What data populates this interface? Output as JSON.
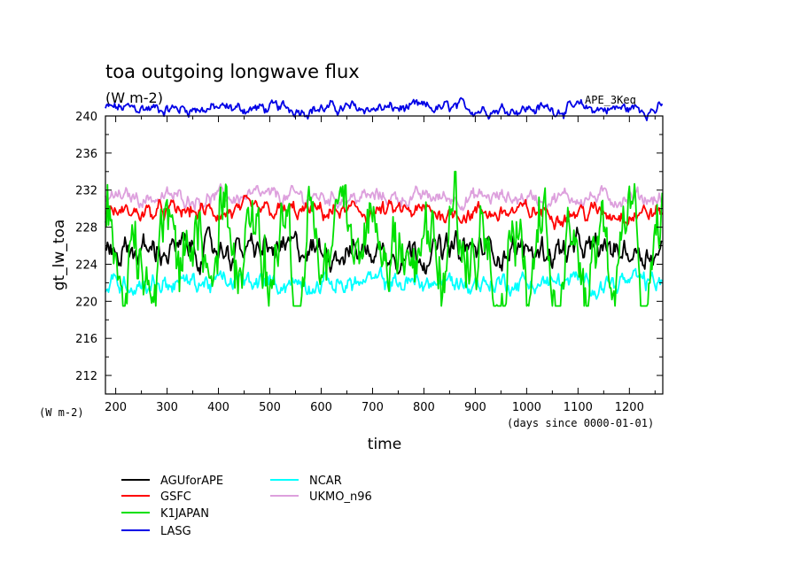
{
  "chart_data": {
    "type": "line",
    "title": "toa outgoing longwave flux",
    "subtitle": "(W m-2)",
    "tag": "APE_3Keq",
    "ylabel": "gt_lw_toa",
    "yunits": "(W m-2)",
    "xlabel": "time",
    "xunits": "(days since 0000-01-01)",
    "xlim": [
      180,
      1265
    ],
    "ylim": [
      210,
      240
    ],
    "xticks": [
      200,
      300,
      400,
      500,
      600,
      700,
      800,
      900,
      1000,
      1100,
      1200
    ],
    "yticks": [
      212,
      216,
      220,
      224,
      228,
      232,
      236,
      240
    ],
    "grid": false,
    "legend_position": "bottom-left",
    "series": [
      {
        "name": "AGUforAPE",
        "color": "#000000",
        "mean": 225.5,
        "amplitude": 1.4,
        "min": 222.0,
        "max": 228.0
      },
      {
        "name": "GSFC",
        "color": "#ff0000",
        "mean": 229.6,
        "amplitude": 0.9,
        "min": 227.5,
        "max": 232.5
      },
      {
        "name": "K1JAPAN",
        "color": "#00e000",
        "mean": 225.8,
        "amplitude": 3.4,
        "min": 219.5,
        "max": 234.0
      },
      {
        "name": "LASG",
        "color": "#0000e6",
        "mean": 240.8,
        "amplitude": 0.6,
        "min": 239.0,
        "max": 242.0
      },
      {
        "name": "NCAR",
        "color": "#00ffff",
        "mean": 222.0,
        "amplitude": 1.0,
        "min": 218.0,
        "max": 225.5
      },
      {
        "name": "UKMO_n96",
        "color": "#dda0dd",
        "mean": 231.2,
        "amplitude": 0.8,
        "min": 228.5,
        "max": 234.0
      }
    ]
  }
}
